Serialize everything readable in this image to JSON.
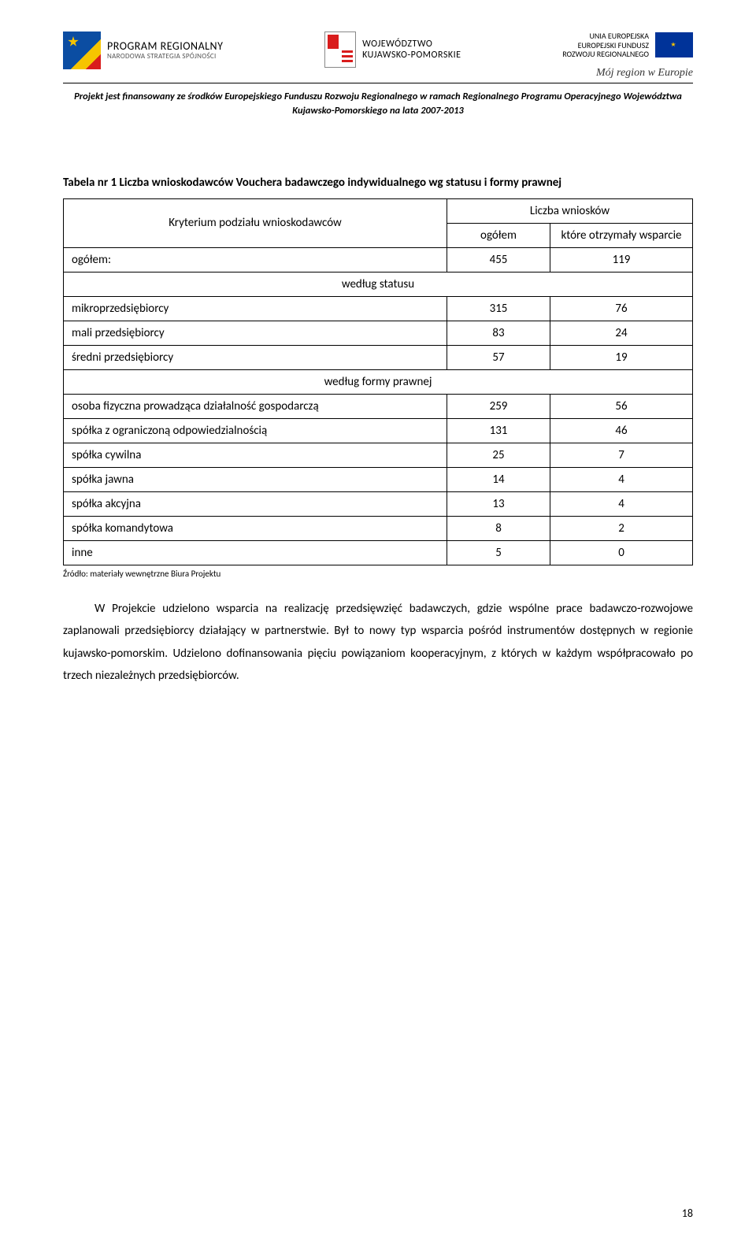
{
  "header": {
    "program": {
      "title": "PROGRAM REGIONALNY",
      "subtitle": "NARODOWA STRATEGIA SPÓJNOŚCI"
    },
    "wojewodztwo": {
      "line1": "WOJEWÓDZTWO",
      "line2": "KUJAWSKO-POMORSKIE"
    },
    "eu": {
      "line1": "UNIA EUROPEJSKA",
      "line2": "EUROPEJSKI FUNDUSZ",
      "line3": "ROZWOJU REGIONALNEGO"
    },
    "slogan": "Mój region w Europie"
  },
  "funding_note": "Projekt jest finansowany ze środków Europejskiego Funduszu Rozwoju Regionalnego w ramach Regionalnego Programu Operacyjnego Województwa Kujawsko-Pomorskiego na lata 2007-2013",
  "table": {
    "caption": "Tabela nr 1 Liczba wnioskodawców Vouchera badawczego indywidualnego wg statusu i formy prawnej",
    "header": {
      "criterion": "Kryterium podziału wnioskodawców",
      "count_title": "Liczba wniosków",
      "total_col": "ogółem",
      "support_col": "które otrzymały wsparcie"
    },
    "total_row": {
      "label": "ogółem:",
      "total": "455",
      "support": "119"
    },
    "section_status": "według statusu",
    "status_rows": [
      {
        "label": "mikroprzedsiębiorcy",
        "total": "315",
        "support": "76"
      },
      {
        "label": "mali przedsiębiorcy",
        "total": "83",
        "support": "24"
      },
      {
        "label": "średni przedsiębiorcy",
        "total": "57",
        "support": "19"
      }
    ],
    "section_form": "według formy prawnej",
    "form_rows": [
      {
        "label": "osoba fizyczna prowadząca działalność gospodarczą",
        "total": "259",
        "support": "56"
      },
      {
        "label": "spółka z ograniczoną odpowiedzialnością",
        "total": "131",
        "support": "46"
      },
      {
        "label": "spółka cywilna",
        "total": "25",
        "support": "7"
      },
      {
        "label": "spółka jawna",
        "total": "14",
        "support": "4"
      },
      {
        "label": "spółka akcyjna",
        "total": "13",
        "support": "4"
      },
      {
        "label": "spółka komandytowa",
        "total": "8",
        "support": "2"
      },
      {
        "label": "inne",
        "total": "5",
        "support": "0"
      }
    ],
    "source": "Źródło: materiały wewnętrzne Biura Projektu"
  },
  "body_text": "W Projekcie udzielono wsparcia na realizację przedsięwzięć badawczych, gdzie wspólne prace badawczo-rozwojowe zaplanowali przedsiębiorcy działający w partnerstwie. Był to nowy typ wsparcia pośród instrumentów dostępnych w regionie kujawsko-pomorskim. Udzielono dofinansowania pięciu powiązaniom kooperacyjnym, z których w każdym współpracowało po trzech niezależnych przedsiębiorców.",
  "page_number": "18"
}
